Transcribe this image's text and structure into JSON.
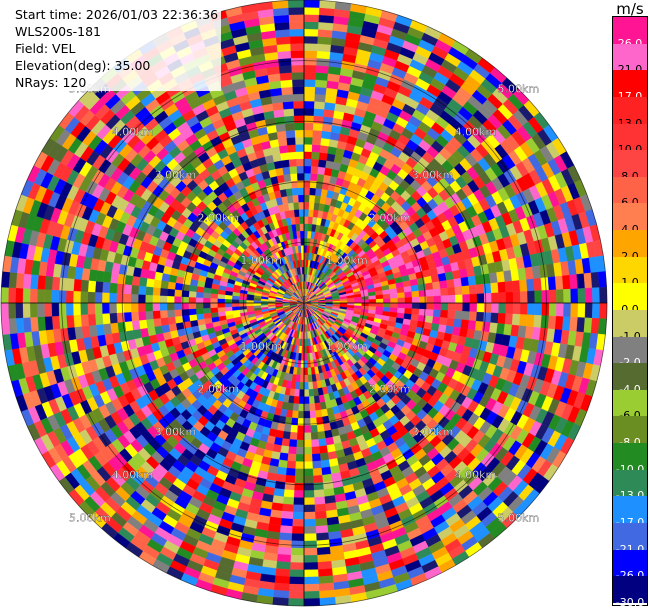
{
  "info": {
    "start_time": "Start time: 2026/01/03 22:36:36",
    "site": "WLS200s-181",
    "field": "Field: VEL",
    "elevation": "Elevation(deg): 35.00",
    "nrays": "NRays: 120"
  },
  "colorbar": {
    "unit": "m/s",
    "labels": [
      "26.0",
      "21.0",
      "17.0",
      "13.0",
      "10.0",
      "8.0",
      "6.0",
      "4.0",
      "2.0",
      "1.0",
      "0.0",
      "-1.0",
      "-2.0",
      "-4.0",
      "-6.0",
      "-8.0",
      "-10.0",
      "-13.0",
      "-17.0",
      "-21.0",
      "-26.0",
      "-30.0"
    ],
    "colors": [
      "#ff1493",
      "#ff66cc",
      "#ff0000",
      "#ff2222",
      "#ff3333",
      "#ff4444",
      "#ff6347",
      "#ff7f50",
      "#ffa500",
      "#ffd700",
      "#ffff00",
      "#cccc66",
      "#808080",
      "#556b2f",
      "#9acd32",
      "#6b8e23",
      "#228b22",
      "#2e8b57",
      "#1e90ff",
      "#4169e1",
      "#0000ff",
      "#000080",
      "#191970"
    ]
  },
  "chart_data": {
    "type": "heatmap",
    "subtype": "PPI radial velocity sweep",
    "field": "VEL",
    "units": "m/s",
    "nrays": 120,
    "elevation_deg": 35.0,
    "range_rings_km": [
      1.0,
      2.0,
      3.0,
      4.0,
      5.0
    ],
    "ring_labels": [
      "1.00km",
      "2.00km",
      "3.00km",
      "4.00km",
      "5.00km"
    ],
    "ring_label_bearings_deg": [
      45,
      135,
      225,
      315
    ],
    "color_levels": [
      -30.0,
      -26.0,
      -21.0,
      -17.0,
      -13.0,
      -10.0,
      -8.0,
      -6.0,
      -4.0,
      -2.0,
      -1.0,
      0.0,
      1.0,
      2.0,
      4.0,
      6.0,
      8.0,
      10.0,
      13.0,
      17.0,
      21.0,
      26.0
    ],
    "max_range_km": 5.0,
    "grid": true
  }
}
